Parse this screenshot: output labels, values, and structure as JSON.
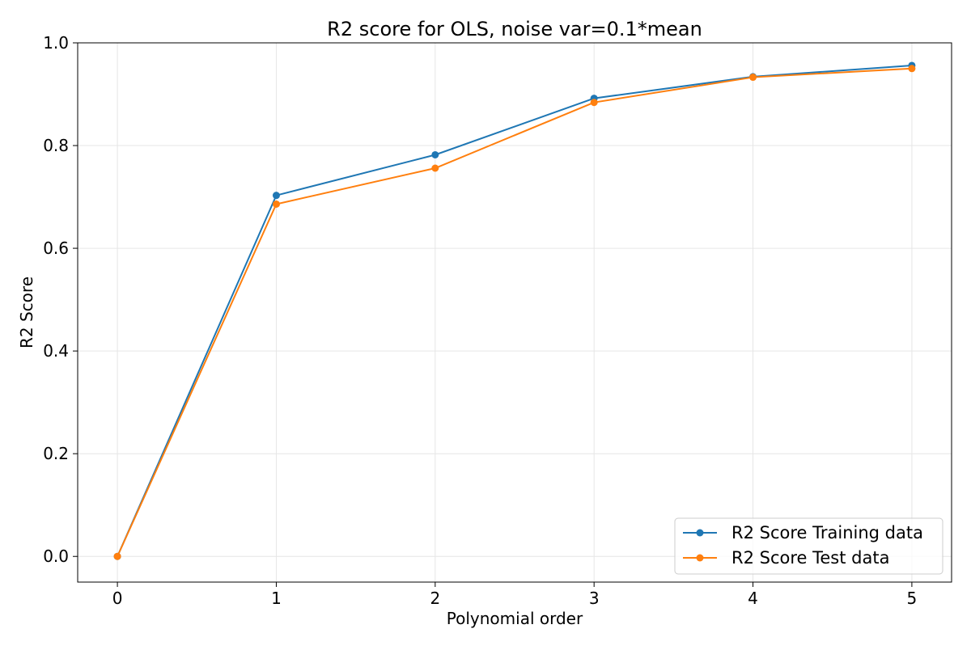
{
  "chart_data": {
    "type": "line",
    "title": "R2 score for OLS, noise var=0.1*mean",
    "xlabel": "Polynomial order",
    "ylabel": "R2 Score",
    "x": [
      0,
      1,
      2,
      3,
      4,
      5
    ],
    "xlim": [
      -0.25,
      5.25
    ],
    "ylim": [
      -0.05,
      1.0
    ],
    "xticks": [
      "0",
      "1",
      "2",
      "3",
      "4",
      "5"
    ],
    "yticks": [
      "0.0",
      "0.2",
      "0.4",
      "0.6",
      "0.8",
      "1.0"
    ],
    "grid": true,
    "legend_position": "lower-right",
    "series": [
      {
        "name": "R2 Score Training data",
        "color": "#1f77b4",
        "values": [
          0.0,
          0.703,
          0.782,
          0.892,
          0.934,
          0.956
        ]
      },
      {
        "name": "R2 Score Test data",
        "color": "#ff7f0e",
        "values": [
          0.0,
          0.686,
          0.756,
          0.884,
          0.933,
          0.95
        ]
      }
    ]
  }
}
